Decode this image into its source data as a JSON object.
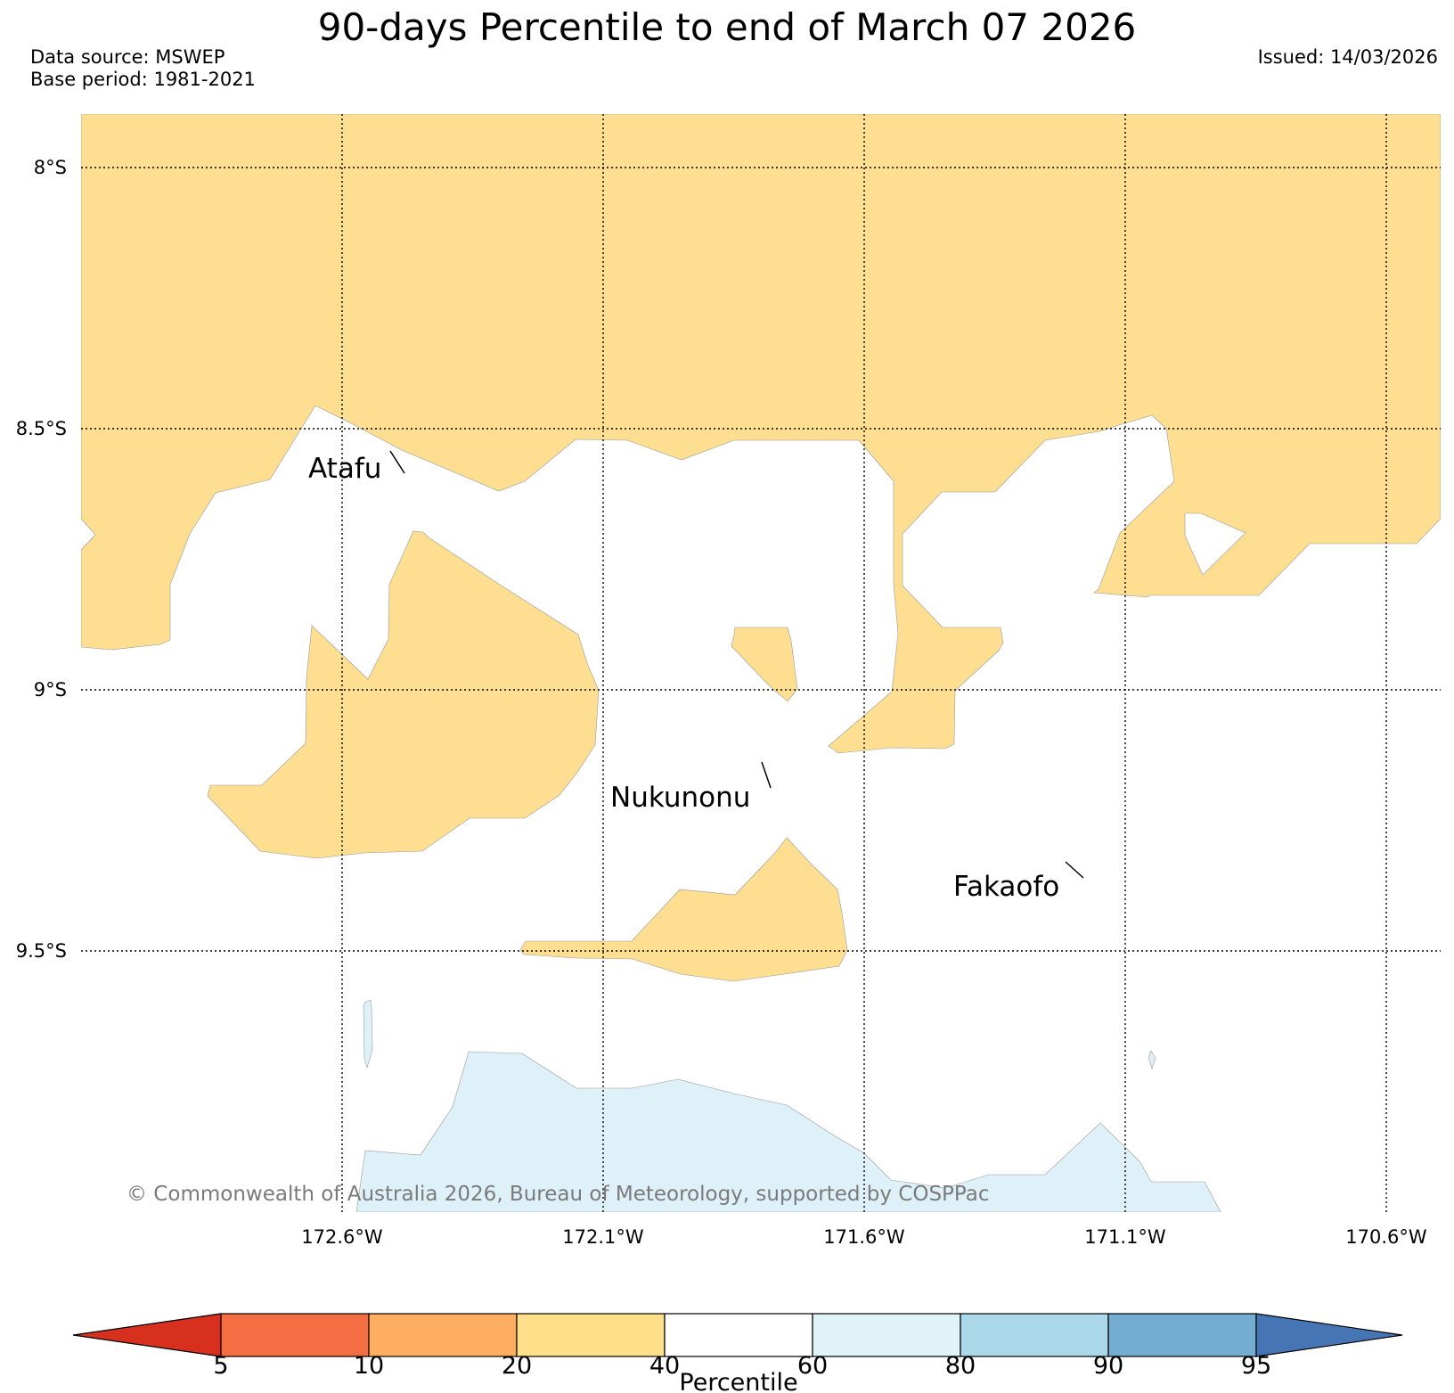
{
  "title": "90-days Percentile to end of March 07 2026",
  "data_source": "Data source: MSWEP",
  "base_period": "Base period: 1981-2021",
  "issued": "Issued: 14/03/2026",
  "copyright": "© Commonwealth of Australia 2026, Bureau of Meteorology, supported by COSPPac",
  "lat_labels": [
    "8°S",
    "8.5°S",
    "9°S",
    "9.5°S"
  ],
  "lon_labels": [
    "172.6°W",
    "172.1°W",
    "171.6°W",
    "171.1°W",
    "170.6°W"
  ],
  "places": [
    "Atafu",
    "Nukunonu",
    "Fakaofo"
  ],
  "colorbar": {
    "label": "Percentile",
    "ticks": [
      "5",
      "10",
      "20",
      "40",
      "60",
      "80",
      "90",
      "95"
    ],
    "colors": [
      "#d7301f",
      "#f46d43",
      "#fdae61",
      "#fee08b",
      "#ffffff",
      "#e0f3f8",
      "#abd9e9",
      "#74add1",
      "#4575b4"
    ]
  },
  "fill_colors": {
    "dry_20_40": "#fede91",
    "normal_40_60": "#ffffff",
    "wet_60_80": "#dff1f8"
  }
}
